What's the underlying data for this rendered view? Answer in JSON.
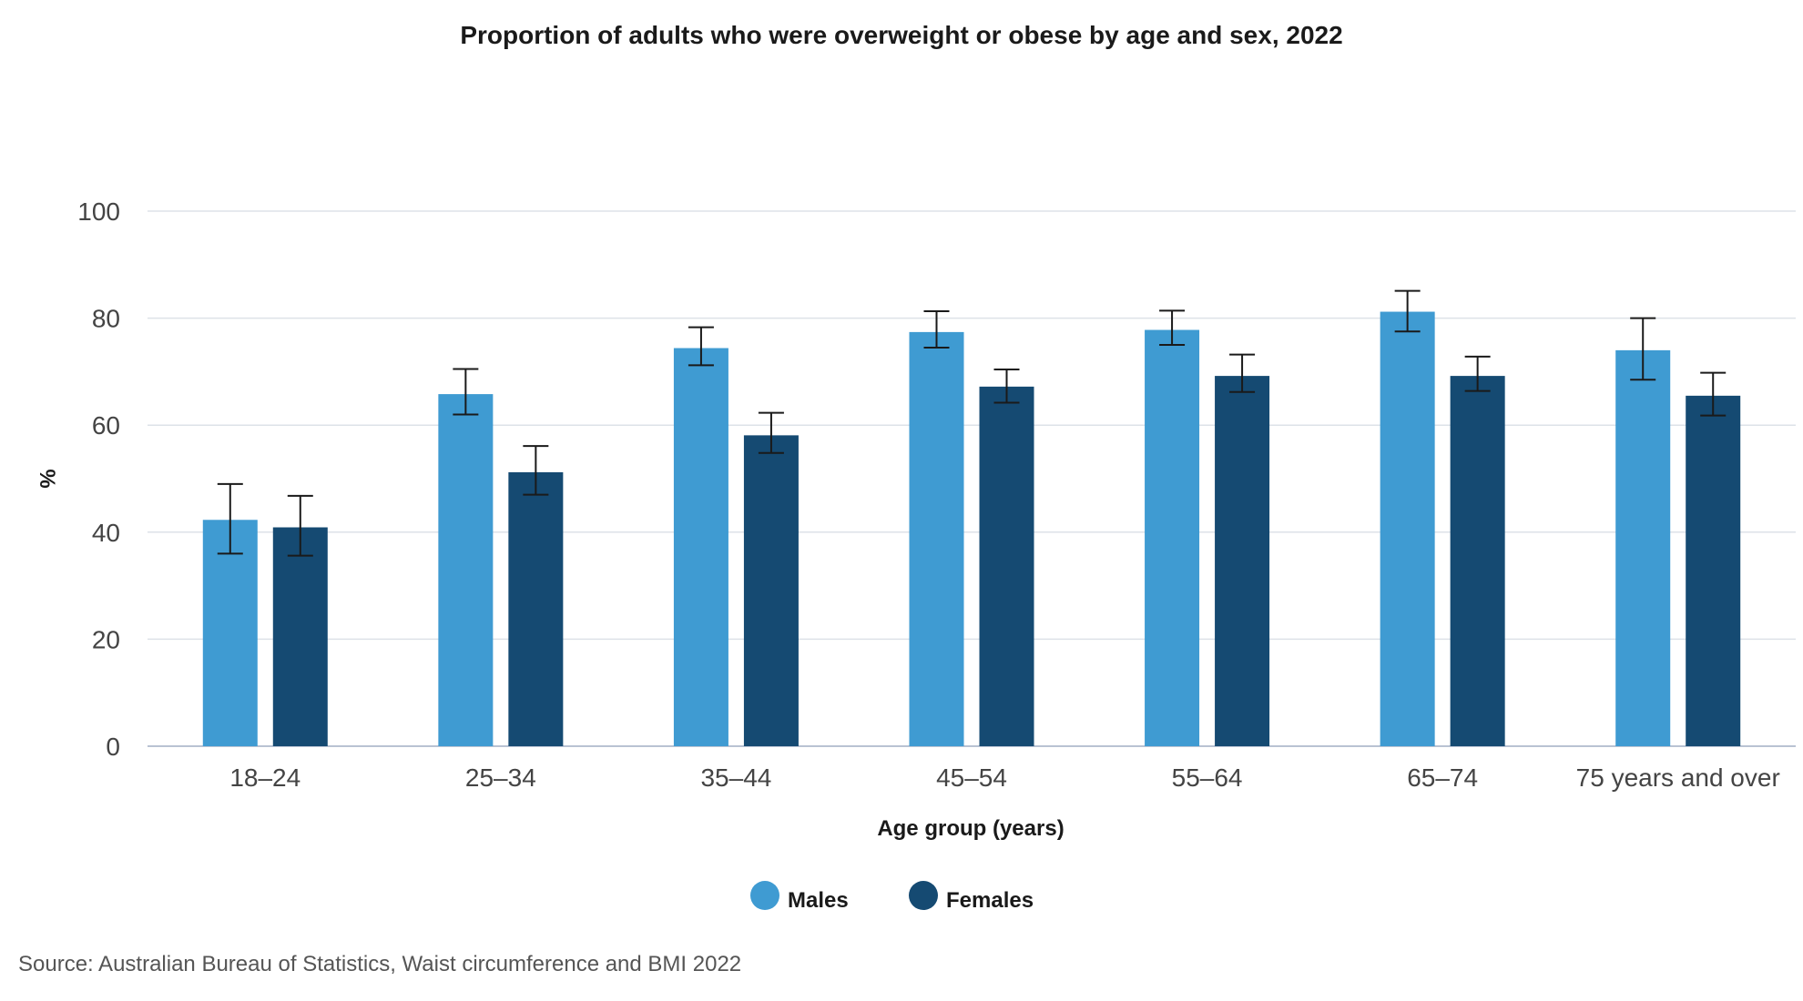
{
  "chart_data": {
    "type": "bar",
    "title": "Proportion of adults who were overweight or obese by age and sex, 2022",
    "xlabel": "Age group (years)",
    "ylabel": "%",
    "ylim": [
      0,
      100
    ],
    "yticks": [
      0,
      20,
      40,
      60,
      80,
      100
    ],
    "grid": true,
    "legend_position": "bottom",
    "categories": [
      "18–24",
      "25–34",
      "35–44",
      "45–54",
      "55–64",
      "65–74",
      "75 years and over"
    ],
    "series": [
      {
        "name": "Males",
        "color": "#3f9bd2",
        "values": [
          42.3,
          65.8,
          74.4,
          77.4,
          77.8,
          81.2,
          74.0
        ],
        "error_low": [
          36.0,
          62.0,
          71.2,
          74.5,
          75.0,
          77.5,
          68.5
        ],
        "error_high": [
          49.0,
          70.5,
          78.3,
          81.3,
          81.4,
          85.1,
          80.0
        ]
      },
      {
        "name": "Females",
        "color": "#154a72",
        "values": [
          40.9,
          51.2,
          58.1,
          67.2,
          69.2,
          69.2,
          65.5
        ],
        "error_low": [
          35.6,
          47.0,
          54.8,
          64.2,
          66.2,
          66.4,
          61.8
        ],
        "error_high": [
          46.8,
          56.1,
          62.3,
          70.4,
          73.2,
          72.8,
          69.8
        ]
      }
    ],
    "source": "Source: Australian Bureau of Statistics, Waist circumference and BMI 2022"
  }
}
